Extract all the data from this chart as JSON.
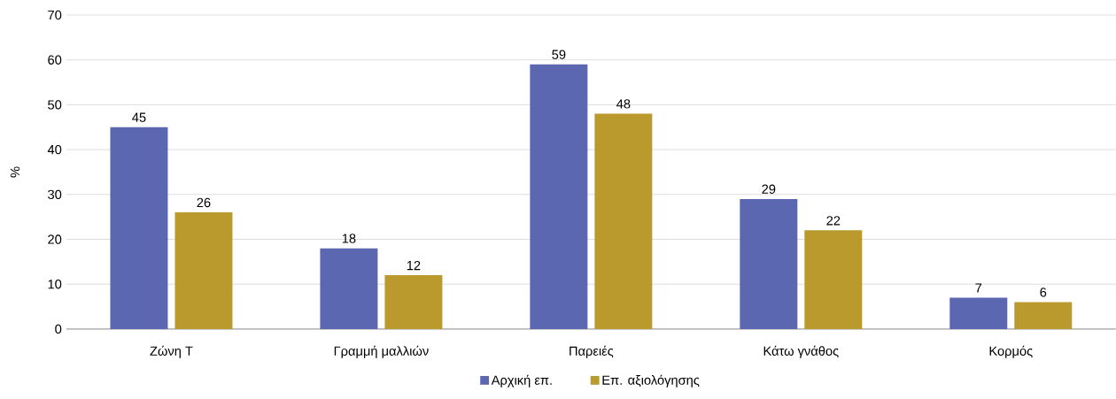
{
  "chart_data": {
    "type": "bar",
    "ylabel": "%",
    "categories": [
      "Ζώνη Τ",
      "Γραμμή μαλλιών",
      "Παρειές",
      "Κάτω γνάθος",
      "Κορμός"
    ],
    "series": [
      {
        "name": "Αρχική επ.",
        "color": "#5b67b0",
        "values": [
          45,
          18,
          59,
          29,
          7
        ]
      },
      {
        "name": "Επ. αξιολόγησης",
        "color": "#bb9a2d",
        "values": [
          26,
          12,
          48,
          22,
          6
        ]
      }
    ],
    "data_labels": true,
    "ylim": [
      0,
      70
    ],
    "yticks": [
      0,
      10,
      20,
      30,
      40,
      50,
      60,
      70
    ],
    "grid": "y",
    "legend": "bottom"
  }
}
